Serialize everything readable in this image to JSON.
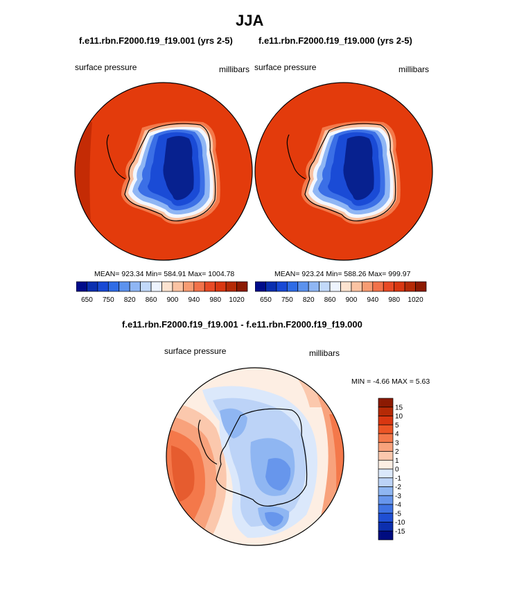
{
  "page": {
    "title": "JJA",
    "colors": {
      "coast": "#000000",
      "background": "#ffffff"
    }
  },
  "chart_data": [
    {
      "type": "heatmap",
      "projection": "south-polar-stereographic",
      "title": "f.e11.rbn.F2000.f19_f19.001 (yrs 2-5)",
      "left_label": "surface pressure",
      "right_label": "millibars",
      "stats_text": "MEAN= 923.34  Min= 584.91  Max= 1004.78",
      "mean": 923.34,
      "min": 584.91,
      "max": 1004.78,
      "colorbar": {
        "orientation": "horizontal",
        "tick_labels": [
          "650",
          "750",
          "820",
          "860",
          "900",
          "940",
          "980",
          "1020"
        ],
        "colors": [
          "#000c8a",
          "#0a2fb0",
          "#1849d5",
          "#2f6ce6",
          "#5c92ee",
          "#8fb6f4",
          "#c2d9fa",
          "#eef4fe",
          "#fde3d0",
          "#fbc3a3",
          "#f79c73",
          "#f2724a",
          "#e84a25",
          "#d93711",
          "#b52a06",
          "#8c1a02"
        ]
      }
    },
    {
      "type": "heatmap",
      "projection": "south-polar-stereographic",
      "title": "f.e11.rbn.F2000.f19_f19.000 (yrs 2-5)",
      "left_label": "surface pressure",
      "right_label": "millibars",
      "stats_text": "MEAN= 923.24  Min= 588.26  Max= 999.97",
      "mean": 923.24,
      "min": 588.26,
      "max": 999.97,
      "colorbar": {
        "orientation": "horizontal",
        "tick_labels": [
          "650",
          "750",
          "820",
          "860",
          "900",
          "940",
          "980",
          "1020"
        ],
        "colors": [
          "#000c8a",
          "#0a2fb0",
          "#1849d5",
          "#2f6ce6",
          "#5c92ee",
          "#8fb6f4",
          "#c2d9fa",
          "#eef4fe",
          "#fde3d0",
          "#fbc3a3",
          "#f79c73",
          "#f2724a",
          "#e84a25",
          "#d93711",
          "#b52a06",
          "#8c1a02"
        ]
      }
    },
    {
      "type": "heatmap",
      "projection": "south-polar-stereographic",
      "title": "f.e11.rbn.F2000.f19_f19.001 - f.e11.rbn.F2000.f19_f19.000",
      "left_label": "surface pressure",
      "right_label": "millibars",
      "stats_text": "MIN =  -4.66 MAX =   5.63",
      "min": -4.66,
      "max": 5.63,
      "colorbar": {
        "orientation": "vertical",
        "tick_labels": [
          "15",
          "10",
          "5",
          "4",
          "3",
          "2",
          "1",
          "0",
          "-1",
          "-2",
          "-3",
          "-4",
          "-5",
          "-10",
          "-15"
        ],
        "colors": [
          "#8c1a02",
          "#b52a06",
          "#d93711",
          "#ec5525",
          "#f4784a",
          "#f8a27c",
          "#fbc8ad",
          "#fdeee3",
          "#dbe8fb",
          "#bcd3f7",
          "#8fb6f2",
          "#6796ec",
          "#3f73e3",
          "#1f4fd3",
          "#0c2fae",
          "#000c80"
        ]
      }
    }
  ]
}
